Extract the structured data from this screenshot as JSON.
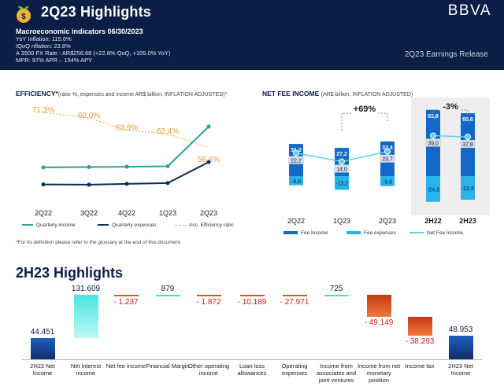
{
  "header": {
    "title": "2Q23 Highlights",
    "brand": "BBVA",
    "macro_title": "Macroeconomic indicators 06/30/2023",
    "macro_lines": [
      "YoY Inflation: 115.6%",
      "IQoQ nflation: 23.8%",
      "A 3500 FX Rate : AR$256.68 (+22.8% QoQ, +105.0% YoY)",
      "MPR: 97% APR – 154% APY"
    ],
    "release": "2Q23 Earnings Release"
  },
  "efficiency": {
    "title_bold": "EFFICIENCY*",
    "title_note": "(ratio %, expenses and income AR$ billion, INFLATION ADJUSTED)*",
    "legend": [
      "Quarterly income",
      "Quarterly expenses",
      "Acc. Efficiency ratio"
    ],
    "footnote": "*For its definition please refer to the glossary at the end of this document.",
    "colors": {
      "income": "#2aa198",
      "expenses": "#0b2a5b",
      "ratio": "#f0a848"
    }
  },
  "fee": {
    "title_bold": "NET FEE INCOME",
    "title_note": "(AR$ billion, INFLATION ADJUSTED)",
    "legend": [
      "Fee Income",
      "Fee expenses",
      "Net Fee Income"
    ],
    "change_1": "+69%",
    "change_2": "-3%",
    "colors": {
      "income": "#1469c7",
      "expenses": "#29b3ea",
      "net": "#5ad2e8",
      "label_bg": "#d6dde8"
    }
  },
  "waterfall": {
    "title": "2H23 Highlights",
    "colors": {
      "pos": "#1a3f8a",
      "pos_light": "#3ee0d8",
      "neg": "#d6531a"
    }
  },
  "chart_data": [
    {
      "type": "line",
      "title": "EFFICIENCY*",
      "x": [
        "2Q22",
        "3Q22",
        "4Q22",
        "1Q23",
        "2Q23"
      ],
      "series": [
        {
          "name": "Acc. Efficiency ratio",
          "values": [
            71.3,
            69.0,
            63.9,
            62.4,
            56.6
          ],
          "labels": [
            "71,3%",
            "69,0%",
            "63,9%",
            "62,4%",
            "56,6%"
          ]
        },
        {
          "name": "Quarterly income",
          "values": [
            235,
            236,
            237,
            239,
            390
          ]
        },
        {
          "name": "Quarterly expenses",
          "values": [
            170,
            169,
            172,
            175,
            255
          ]
        }
      ]
    },
    {
      "type": "bar",
      "title": "NET FEE INCOME",
      "categories": [
        "2Q22",
        "1Q23",
        "2Q23",
        "2H22",
        "2H23"
      ],
      "series": [
        {
          "name": "Fee Income",
          "values": [
            31.0,
            27.2,
            33.4,
            63.8,
            60.6
          ],
          "labels": [
            "31,0",
            "27,2",
            "33,4",
            "63,8",
            "60,6"
          ]
        },
        {
          "name": "Fee expenses",
          "values": [
            -8.8,
            -13.2,
            -9.6,
            -24.8,
            -22.8
          ],
          "labels": [
            "-8,8",
            "-13,2",
            "-9,6",
            "-24,8",
            "-22,8"
          ]
        },
        {
          "name": "Net Fee Income",
          "values": [
            22.2,
            14.0,
            23.7,
            39.0,
            37.8
          ],
          "labels": [
            "22,2",
            "14,0",
            "23,7",
            "39,0",
            "37,8"
          ]
        }
      ]
    },
    {
      "type": "bar",
      "title": "2H23 Highlights",
      "categories": [
        "2H22 Net Income",
        "Net interest income",
        "Net fee income",
        "Financial Margin",
        "Other operating income",
        "Loan loss allowances",
        "Operating expenses",
        "Income from associates and joint ventures",
        "Income from net monetary position",
        "Income tax",
        "2H23 Net Income"
      ],
      "values": [
        44451,
        131609,
        -1237,
        879,
        -1872,
        -10189,
        -27971,
        725,
        -49149,
        -38293,
        48953
      ],
      "labels": [
        "44.451",
        "131.609",
        "- 1.237",
        "879",
        "- 1.872",
        "- 10.189",
        "- 27.971",
        "725",
        "- 49.149",
        "- 38.293",
        "48.953"
      ]
    }
  ]
}
